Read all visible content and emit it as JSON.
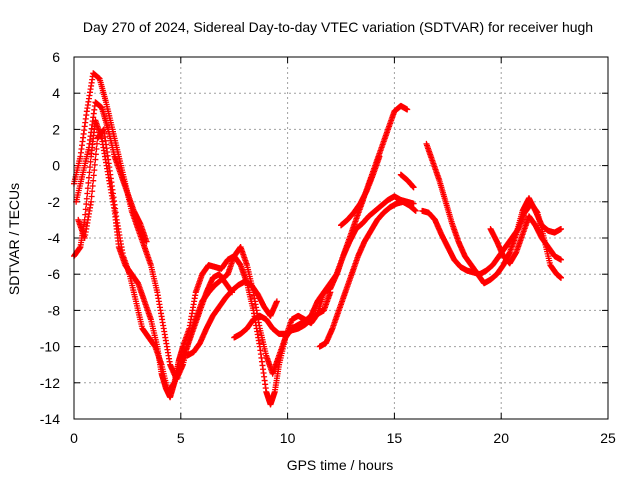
{
  "chart_data": {
    "type": "scatter",
    "title": "Day 270 of 2024, Sidereal Day-to-day VTEC variation (SDTVAR) for receiver hugh",
    "xlabel": "GPS time / hours",
    "ylabel": "SDTVAR / TECUs",
    "xlim": [
      0,
      25
    ],
    "ylim": [
      -14,
      6
    ],
    "xticks": [
      0,
      5,
      10,
      15,
      20,
      25
    ],
    "yticks": [
      -14,
      -12,
      -10,
      -8,
      -6,
      -4,
      -2,
      0,
      2,
      4,
      6
    ],
    "grid": true,
    "marker": "plus",
    "color": "#ff0000",
    "series": [
      {
        "x": [
          0.0,
          0.3,
          0.5,
          0.8,
          1.0,
          1.3,
          1.6,
          1.9,
          2.1,
          2.4,
          2.7,
          3.0,
          3.3,
          3.6,
          3.9,
          4.1,
          4.3,
          4.5,
          4.7,
          4.9,
          5.1,
          5.4,
          5.7,
          6.0,
          6.3,
          6.6,
          6.9,
          7.2,
          7.5,
          7.8,
          8.1,
          8.4,
          8.7,
          9.0,
          9.2,
          9.4,
          9.6,
          9.9,
          10.2,
          10.5,
          10.8,
          11.1,
          11.4,
          11.7,
          12.0,
          12.3,
          12.6,
          12.9,
          13.2,
          13.5,
          13.8,
          14.1,
          14.4,
          14.7,
          15.0,
          15.3,
          15.6
        ],
        "y": [
          -5.0,
          -4.5,
          -3.0,
          0.5,
          2.5,
          1.5,
          -0.5,
          -2.5,
          -4.5,
          -5.5,
          -6.0,
          -6.5,
          -7.5,
          -8.5,
          -10.0,
          -11.5,
          -12.3,
          -12.8,
          -12.0,
          -10.8,
          -10.0,
          -9.0,
          -7.0,
          -6.0,
          -5.5,
          -5.6,
          -5.7,
          -5.2,
          -5.0,
          -5.5,
          -6.5,
          -8.0,
          -10.0,
          -12.5,
          -13.2,
          -12.5,
          -11.0,
          -9.5,
          -8.5,
          -8.3,
          -8.5,
          -8.7,
          -8.2,
          -7.0,
          -6.5,
          -6.0,
          -5.0,
          -4.0,
          -3.0,
          -2.0,
          -1.0,
          0.0,
          1.0,
          2.0,
          3.0,
          3.3,
          3.1
        ]
      },
      {
        "x": [
          0.0,
          0.3,
          0.6,
          0.9,
          1.2,
          1.5,
          1.8,
          2.1,
          2.4,
          2.7,
          3.0,
          3.3,
          3.6,
          3.9,
          4.2,
          4.5,
          4.8,
          5.1,
          5.4,
          5.7,
          6.0,
          6.3,
          6.6,
          6.9,
          7.2,
          7.5,
          7.8,
          8.1,
          8.4,
          8.7,
          9.0,
          9.3,
          9.6,
          9.9,
          10.2,
          10.5,
          10.8,
          11.1,
          11.4,
          11.7,
          12.0,
          12.3,
          12.6,
          12.9,
          13.2,
          13.5,
          13.8,
          14.1,
          14.4,
          14.7,
          15.0,
          15.3,
          15.6,
          15.9
        ],
        "y": [
          -1.0,
          0.5,
          3.0,
          5.1,
          4.8,
          3.5,
          2.0,
          0.5,
          -1.0,
          -2.5,
          -3.5,
          -4.5,
          -5.5,
          -7.0,
          -9.0,
          -11.0,
          -11.8,
          -11.0,
          -9.5,
          -8.5,
          -7.5,
          -7.0,
          -6.6,
          -6.3,
          -6.0,
          -5.0,
          -4.5,
          -5.5,
          -7.0,
          -9.0,
          -10.5,
          -11.5,
          -10.5,
          -9.5,
          -9.0,
          -8.8,
          -8.6,
          -8.3,
          -7.5,
          -7.0,
          -6.8,
          -6.0,
          -5.0,
          -4.2,
          -3.5,
          -3.2,
          -2.8,
          -2.5,
          -2.2,
          -1.9,
          -1.7,
          -1.9,
          -2.0,
          -2.1
        ]
      },
      {
        "x": [
          0.1,
          0.4,
          0.7,
          1.0,
          1.3,
          1.6,
          1.9,
          2.2,
          2.5,
          2.8,
          3.1,
          3.4
        ],
        "y": [
          -2.0,
          -0.5,
          1.0,
          3.5,
          3.2,
          2.0,
          0.5,
          -0.5,
          -1.5,
          -2.5,
          -3.2,
          -4.2
        ]
      },
      {
        "x": [
          0.2,
          0.5,
          0.8,
          1.1,
          1.4,
          1.7,
          2.0,
          2.3,
          2.6,
          2.9,
          3.2,
          3.5,
          3.8,
          4.1,
          4.4,
          4.7,
          5.0,
          5.3,
          5.6,
          5.9,
          6.2,
          6.5,
          6.8,
          7.1,
          7.4
        ],
        "y": [
          -3.0,
          -4.0,
          -2.0,
          1.5,
          2.0,
          -0.5,
          -3.0,
          -5.0,
          -6.0,
          -7.5,
          -9.0,
          -9.5,
          -10.0,
          -11.0,
          -12.5,
          -12.0,
          -11.0,
          -10.0,
          -9.0,
          -8.0,
          -7.0,
          -6.2,
          -6.0,
          -6.5,
          -7.0
        ]
      },
      {
        "x": [
          5.3,
          5.6,
          5.9,
          6.2,
          6.5,
          6.8,
          7.1,
          7.4,
          7.7,
          8.0,
          8.3,
          8.6,
          8.9,
          9.2,
          9.5
        ],
        "y": [
          -10.5,
          -10.3,
          -9.8,
          -9.0,
          -8.3,
          -7.8,
          -7.3,
          -6.9,
          -6.6,
          -6.4,
          -6.6,
          -7.1,
          -7.8,
          -8.3,
          -7.5
        ]
      },
      {
        "x": [
          7.5,
          7.8,
          8.1,
          8.4,
          8.7,
          9.0,
          9.3,
          9.6,
          9.9,
          10.2,
          10.5,
          10.8,
          11.1,
          11.4,
          11.7,
          12.0
        ],
        "y": [
          -9.5,
          -9.3,
          -9.0,
          -8.5,
          -8.3,
          -8.5,
          -9.0,
          -9.3,
          -9.3,
          -9.1,
          -9.0,
          -8.8,
          -8.5,
          -8.2,
          -8.0,
          -7.0
        ]
      },
      {
        "x": [
          11.5,
          11.8,
          12.1,
          12.4,
          12.7,
          13.0,
          13.3,
          13.6,
          13.9,
          14.2,
          14.5,
          14.8,
          15.1,
          15.4,
          15.7,
          16.0
        ],
        "y": [
          -10.0,
          -9.8,
          -9.0,
          -8.0,
          -7.0,
          -6.0,
          -5.0,
          -4.2,
          -3.6,
          -3.0,
          -2.6,
          -2.3,
          -2.1,
          -2.0,
          -2.2,
          -2.5
        ]
      },
      {
        "x": [
          12.5,
          12.8,
          13.1,
          13.4,
          13.7,
          14.0,
          14.3
        ],
        "y": [
          -3.3,
          -3.0,
          -2.6,
          -2.1,
          -1.4,
          -0.5,
          0.5
        ]
      },
      {
        "x": [
          15.3,
          15.6,
          15.9
        ],
        "y": [
          -0.5,
          -0.8,
          -1.2
        ]
      },
      {
        "x": [
          16.3,
          16.6,
          16.9,
          17.2,
          17.5,
          17.8,
          18.1,
          18.4,
          18.7,
          19.0,
          19.3,
          19.6,
          19.9,
          20.2,
          20.5,
          20.8,
          21.1,
          21.4,
          21.7,
          22.0,
          22.3,
          22.6,
          22.8
        ],
        "y": [
          -2.5,
          -2.6,
          -3.0,
          -3.8,
          -4.5,
          -5.2,
          -5.6,
          -5.8,
          -5.9,
          -6.0,
          -5.8,
          -5.5,
          -5.0,
          -4.5,
          -4.0,
          -3.5,
          -2.6,
          -2.1,
          -2.6,
          -4.0,
          -5.5,
          -6.0,
          -6.2
        ]
      },
      {
        "x": [
          16.5,
          16.8,
          17.1,
          17.4,
          17.7,
          18.0,
          18.3,
          18.6,
          18.9,
          19.2,
          19.5,
          19.8,
          20.1,
          20.4,
          20.7,
          21.0,
          21.3,
          21.6,
          21.9,
          22.2,
          22.5,
          22.8
        ],
        "y": [
          1.2,
          0.2,
          -0.8,
          -2.0,
          -3.2,
          -4.2,
          -5.0,
          -5.5,
          -6.0,
          -6.5,
          -6.3,
          -6.0,
          -5.5,
          -4.8,
          -3.8,
          -2.5,
          -1.8,
          -2.5,
          -3.3,
          -3.6,
          -3.7,
          -3.5
        ]
      },
      {
        "x": [
          19.5,
          19.8,
          20.1,
          20.4,
          20.7,
          21.0,
          21.3,
          21.6,
          21.9,
          22.2,
          22.5,
          22.8
        ],
        "y": [
          -3.5,
          -4.2,
          -5.0,
          -5.4,
          -4.8,
          -3.8,
          -2.8,
          -3.3,
          -4.0,
          -4.5,
          -5.0,
          -5.2
        ]
      }
    ]
  }
}
